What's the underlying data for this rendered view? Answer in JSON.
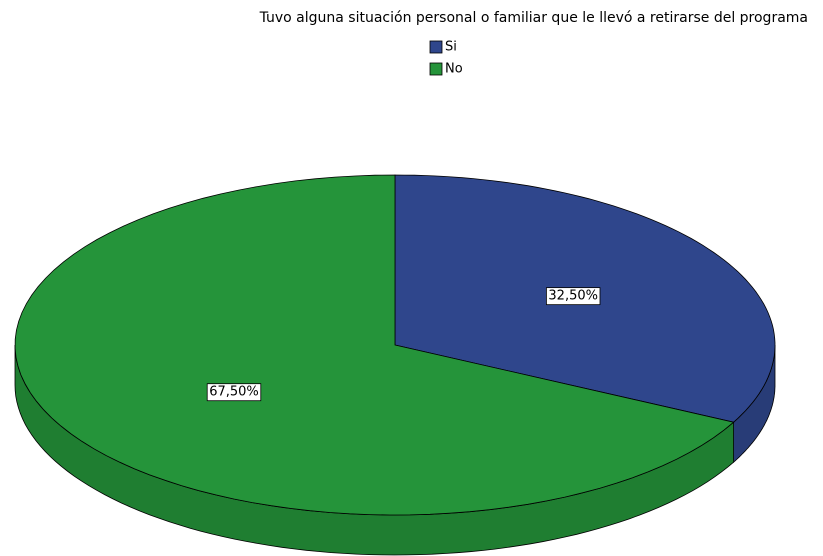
{
  "chart_data": {
    "type": "pie",
    "title": "Tuvo alguna situación personal o familiar que le llevó a retirarse del programa",
    "categories": [
      "Si",
      "No"
    ],
    "values": [
      32.5,
      67.5
    ],
    "value_labels": [
      "32,50%",
      "67,50%"
    ],
    "colors": [
      "#2f468c",
      "#25943a"
    ]
  }
}
